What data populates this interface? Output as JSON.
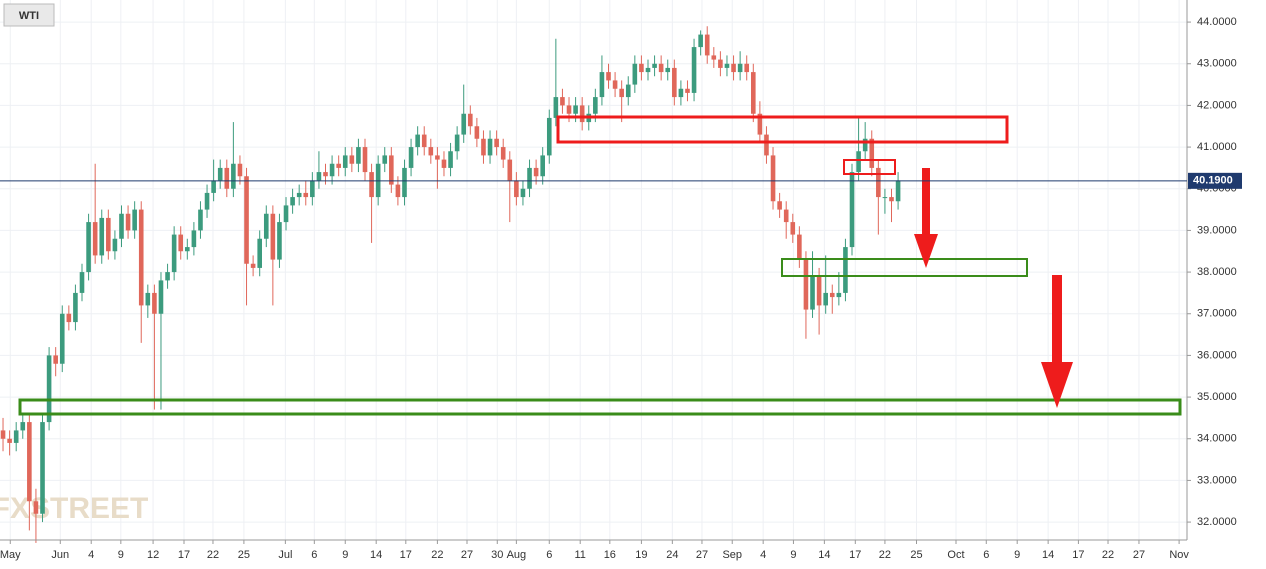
{
  "chart_data": {
    "type": "candlestick",
    "title": "WTI",
    "watermark": "FXSTREET",
    "colors": {
      "up": "#3c9b7e",
      "down": "#e0675a"
    },
    "grid": true,
    "ylim": [
      31.57,
      44.53
    ],
    "yticks": [
      {
        "value": 32,
        "label": "32.0000"
      },
      {
        "value": 33,
        "label": "33.0000"
      },
      {
        "value": 34,
        "label": "34.0000"
      },
      {
        "value": 35,
        "label": "35.0000"
      },
      {
        "value": 36,
        "label": "36.0000"
      },
      {
        "value": 37,
        "label": "37.0000"
      },
      {
        "value": 38,
        "label": "38.0000"
      },
      {
        "value": 39,
        "label": "39.0000"
      },
      {
        "value": 40,
        "label": "40.0000"
      },
      {
        "value": 41,
        "label": "41.0000"
      },
      {
        "value": 42,
        "label": "42.0000"
      },
      {
        "value": 43,
        "label": "43.0000"
      },
      {
        "value": 44,
        "label": "44.0000"
      }
    ],
    "xlim": [
      -0.46,
      179.9
    ],
    "xticks": [
      {
        "value": 1.1,
        "label": "May"
      },
      {
        "value": 8.7,
        "label": "Jun"
      },
      {
        "value": 13.4,
        "label": "4"
      },
      {
        "value": 17.9,
        "label": "9"
      },
      {
        "value": 22.8,
        "label": "12"
      },
      {
        "value": 27.5,
        "label": "17"
      },
      {
        "value": 31.9,
        "label": "22"
      },
      {
        "value": 36.6,
        "label": "25"
      },
      {
        "value": 42.9,
        "label": "Jul"
      },
      {
        "value": 47.3,
        "label": "6"
      },
      {
        "value": 52,
        "label": "9"
      },
      {
        "value": 56.7,
        "label": "14"
      },
      {
        "value": 61.2,
        "label": "17"
      },
      {
        "value": 66,
        "label": "22"
      },
      {
        "value": 70.5,
        "label": "27"
      },
      {
        "value": 75.1,
        "label": "30"
      },
      {
        "value": 78,
        "label": "Aug"
      },
      {
        "value": 83,
        "label": "6"
      },
      {
        "value": 87.7,
        "label": "11"
      },
      {
        "value": 92.2,
        "label": "16"
      },
      {
        "value": 97,
        "label": "19"
      },
      {
        "value": 101.7,
        "label": "24"
      },
      {
        "value": 106.2,
        "label": "27"
      },
      {
        "value": 110.8,
        "label": "Sep"
      },
      {
        "value": 115.5,
        "label": "4"
      },
      {
        "value": 120.1,
        "label": "9"
      },
      {
        "value": 124.8,
        "label": "14"
      },
      {
        "value": 129.5,
        "label": "17"
      },
      {
        "value": 134,
        "label": "22"
      },
      {
        "value": 138.8,
        "label": "25"
      },
      {
        "value": 144.8,
        "label": "Oct"
      },
      {
        "value": 149.4,
        "label": "6"
      },
      {
        "value": 154.1,
        "label": "9"
      },
      {
        "value": 158.8,
        "label": "14"
      },
      {
        "value": 163.4,
        "label": "17"
      },
      {
        "value": 167.9,
        "label": "22"
      },
      {
        "value": 172.6,
        "label": "27"
      },
      {
        "value": 178.7,
        "label": "Nov"
      }
    ],
    "last_price": 40.19,
    "last_price_label": "40.1900",
    "ohlc": [
      [
        34.2,
        34.5,
        33.7,
        34.0
      ],
      [
        34.0,
        34.2,
        33.6,
        33.9
      ],
      [
        33.9,
        34.4,
        33.7,
        34.2
      ],
      [
        34.2,
        34.6,
        34.0,
        34.4
      ],
      [
        34.4,
        34.6,
        31.8,
        32.5
      ],
      [
        32.5,
        32.8,
        31.5,
        32.2
      ],
      [
        32.2,
        34.6,
        32.0,
        34.4
      ],
      [
        34.4,
        36.2,
        34.2,
        36.0
      ],
      [
        36.0,
        36.2,
        35.5,
        35.8
      ],
      [
        35.8,
        37.2,
        35.6,
        37.0
      ],
      [
        37.0,
        37.2,
        36.6,
        36.8
      ],
      [
        36.8,
        37.7,
        36.6,
        37.5
      ],
      [
        37.5,
        38.2,
        37.3,
        38.0
      ],
      [
        38.0,
        39.4,
        37.8,
        39.2
      ],
      [
        39.2,
        40.6,
        38.2,
        38.4
      ],
      [
        38.4,
        39.5,
        38.2,
        39.3
      ],
      [
        39.3,
        39.5,
        38.3,
        38.5
      ],
      [
        38.5,
        39.0,
        38.3,
        38.8
      ],
      [
        38.8,
        39.6,
        38.6,
        39.4
      ],
      [
        39.4,
        39.6,
        38.8,
        39.0
      ],
      [
        39.0,
        39.7,
        38.8,
        39.5
      ],
      [
        39.5,
        39.7,
        36.3,
        37.2
      ],
      [
        37.2,
        37.7,
        36.9,
        37.5
      ],
      [
        37.5,
        37.7,
        34.7,
        37.0
      ],
      [
        37.0,
        38.0,
        34.7,
        37.8
      ],
      [
        37.8,
        38.2,
        37.6,
        38.0
      ],
      [
        38.0,
        39.1,
        37.8,
        38.9
      ],
      [
        38.9,
        39.1,
        38.3,
        38.5
      ],
      [
        38.5,
        38.8,
        38.3,
        38.6
      ],
      [
        38.6,
        39.2,
        38.4,
        39.0
      ],
      [
        39.0,
        39.7,
        38.8,
        39.5
      ],
      [
        39.5,
        40.1,
        39.3,
        39.9
      ],
      [
        39.9,
        40.7,
        39.7,
        40.2
      ],
      [
        40.2,
        40.7,
        40.0,
        40.5
      ],
      [
        40.5,
        40.7,
        39.8,
        40.0
      ],
      [
        40.0,
        41.6,
        39.8,
        40.6
      ],
      [
        40.6,
        40.8,
        40.1,
        40.3
      ],
      [
        40.3,
        40.5,
        37.2,
        38.2
      ],
      [
        38.2,
        38.4,
        37.9,
        38.1
      ],
      [
        38.1,
        39.0,
        37.9,
        38.8
      ],
      [
        38.8,
        39.6,
        38.6,
        39.4
      ],
      [
        39.4,
        39.6,
        37.2,
        38.3
      ],
      [
        38.3,
        39.4,
        38.1,
        39.2
      ],
      [
        39.2,
        39.8,
        39.0,
        39.6
      ],
      [
        39.6,
        40.0,
        39.4,
        39.8
      ],
      [
        39.8,
        40.1,
        39.6,
        39.9
      ],
      [
        39.9,
        40.2,
        39.6,
        39.8
      ],
      [
        39.8,
        40.4,
        39.6,
        40.2
      ],
      [
        40.2,
        40.9,
        40.0,
        40.4
      ],
      [
        40.4,
        40.6,
        40.1,
        40.3
      ],
      [
        40.3,
        40.8,
        40.1,
        40.6
      ],
      [
        40.6,
        40.8,
        40.3,
        40.5
      ],
      [
        40.5,
        41.0,
        40.3,
        40.8
      ],
      [
        40.8,
        41.0,
        40.4,
        40.6
      ],
      [
        40.6,
        41.2,
        40.4,
        41.0
      ],
      [
        41.0,
        41.2,
        40.2,
        40.4
      ],
      [
        40.4,
        40.6,
        38.7,
        39.8
      ],
      [
        39.8,
        40.8,
        39.6,
        40.6
      ],
      [
        40.6,
        41.0,
        40.4,
        40.8
      ],
      [
        40.8,
        41.0,
        39.9,
        40.1
      ],
      [
        40.1,
        40.3,
        39.6,
        39.8
      ],
      [
        39.8,
        40.7,
        39.6,
        40.5
      ],
      [
        40.5,
        41.2,
        40.3,
        41.0
      ],
      [
        41.0,
        41.5,
        40.8,
        41.3
      ],
      [
        41.3,
        41.5,
        40.8,
        41.0
      ],
      [
        41.0,
        41.2,
        40.6,
        40.8
      ],
      [
        40.8,
        41.0,
        40.0,
        40.7
      ],
      [
        40.7,
        40.9,
        40.3,
        40.5
      ],
      [
        40.5,
        41.1,
        40.3,
        40.9
      ],
      [
        40.9,
        41.5,
        40.7,
        41.3
      ],
      [
        41.3,
        42.5,
        41.1,
        41.8
      ],
      [
        41.8,
        42.0,
        41.3,
        41.5
      ],
      [
        41.5,
        41.7,
        41.0,
        41.2
      ],
      [
        41.2,
        41.4,
        40.6,
        40.8
      ],
      [
        40.8,
        41.4,
        40.6,
        41.2
      ],
      [
        41.2,
        41.4,
        40.8,
        41.0
      ],
      [
        41.0,
        41.2,
        40.5,
        40.7
      ],
      [
        40.7,
        40.9,
        39.2,
        40.2
      ],
      [
        40.2,
        40.4,
        39.6,
        39.8
      ],
      [
        39.8,
        40.2,
        39.6,
        40.0
      ],
      [
        40.0,
        40.7,
        39.8,
        40.5
      ],
      [
        40.5,
        40.7,
        40.1,
        40.3
      ],
      [
        40.3,
        41.0,
        40.1,
        40.8
      ],
      [
        40.8,
        41.9,
        40.6,
        41.7
      ],
      [
        41.7,
        43.6,
        41.5,
        42.2
      ],
      [
        42.2,
        42.4,
        41.8,
        42.0
      ],
      [
        42.0,
        42.2,
        41.6,
        41.8
      ],
      [
        41.8,
        42.2,
        41.6,
        42.0
      ],
      [
        42.0,
        42.2,
        41.4,
        41.6
      ],
      [
        41.6,
        42.0,
        41.4,
        41.8
      ],
      [
        41.8,
        42.4,
        41.6,
        42.2
      ],
      [
        42.2,
        43.2,
        42.0,
        42.8
      ],
      [
        42.8,
        43.0,
        42.4,
        42.6
      ],
      [
        42.6,
        42.8,
        42.2,
        42.4
      ],
      [
        42.4,
        42.6,
        41.6,
        42.2
      ],
      [
        42.2,
        42.7,
        42.0,
        42.5
      ],
      [
        42.5,
        43.2,
        42.3,
        43.0
      ],
      [
        43.0,
        43.2,
        42.6,
        42.8
      ],
      [
        42.8,
        43.1,
        42.6,
        42.9
      ],
      [
        42.9,
        43.2,
        42.7,
        43.0
      ],
      [
        43.0,
        43.2,
        42.6,
        42.8
      ],
      [
        42.8,
        43.1,
        42.6,
        42.9
      ],
      [
        42.9,
        43.1,
        42.0,
        42.2
      ],
      [
        42.2,
        42.6,
        42.0,
        42.4
      ],
      [
        42.4,
        42.6,
        42.1,
        42.3
      ],
      [
        42.3,
        43.6,
        42.1,
        43.4
      ],
      [
        43.4,
        43.8,
        43.2,
        43.7
      ],
      [
        43.7,
        43.9,
        43.0,
        43.2
      ],
      [
        43.2,
        43.4,
        42.9,
        43.1
      ],
      [
        43.1,
        43.3,
        42.7,
        42.9
      ],
      [
        42.9,
        43.2,
        42.7,
        43.0
      ],
      [
        43.0,
        43.2,
        42.6,
        42.8
      ],
      [
        42.8,
        43.3,
        42.6,
        43.0
      ],
      [
        43.0,
        43.2,
        42.6,
        42.8
      ],
      [
        42.8,
        43.0,
        41.6,
        41.8
      ],
      [
        41.8,
        42.1,
        41.1,
        41.3
      ],
      [
        41.3,
        41.5,
        40.6,
        40.8
      ],
      [
        40.8,
        41.0,
        39.5,
        39.7
      ],
      [
        39.7,
        39.9,
        39.3,
        39.5
      ],
      [
        39.5,
        39.7,
        38.8,
        39.2
      ],
      [
        39.2,
        39.4,
        38.7,
        38.9
      ],
      [
        38.9,
        39.1,
        38.1,
        38.3
      ],
      [
        38.3,
        38.5,
        36.4,
        37.1
      ],
      [
        37.1,
        38.5,
        36.9,
        37.9
      ],
      [
        37.9,
        38.1,
        36.5,
        37.2
      ],
      [
        37.2,
        38.4,
        37.0,
        37.5
      ],
      [
        37.5,
        37.7,
        37.0,
        37.4
      ],
      [
        37.4,
        38.0,
        37.2,
        37.5
      ],
      [
        37.5,
        38.8,
        37.3,
        38.6
      ],
      [
        38.6,
        40.6,
        38.4,
        40.4
      ],
      [
        40.4,
        41.7,
        40.2,
        40.9
      ],
      [
        40.9,
        41.6,
        40.7,
        41.2
      ],
      [
        41.2,
        41.4,
        40.3,
        40.5
      ],
      [
        40.5,
        40.7,
        38.9,
        39.8
      ],
      [
        39.8,
        40.0,
        39.4,
        39.8
      ],
      [
        39.8,
        40.0,
        39.2,
        39.7
      ],
      [
        39.7,
        40.4,
        39.5,
        40.2
      ]
    ]
  }
}
